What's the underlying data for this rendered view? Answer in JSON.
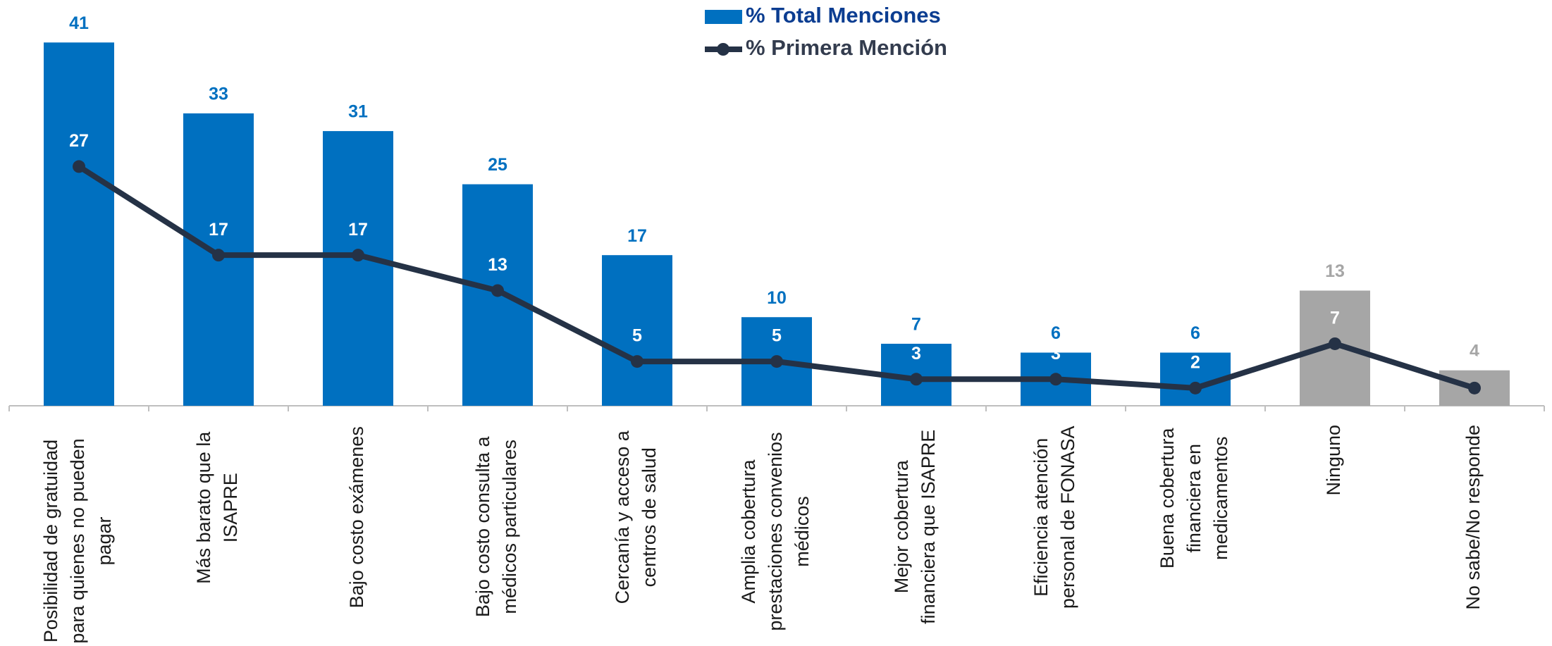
{
  "chart_data": {
    "type": "bar_line",
    "categories": [
      [
        "Posibilidad de gratuidad",
        "para quienes no pueden",
        "pagar"
      ],
      [
        "Más barato que la",
        "ISAPRE"
      ],
      [
        "Bajo costo exámenes"
      ],
      [
        "Bajo costo consulta a",
        "médicos particulares"
      ],
      [
        "Cercanía y acceso a",
        "centros de salud"
      ],
      [
        "Amplia cobertura",
        "prestaciones convenios",
        "médicos"
      ],
      [
        "Mejor cobertura",
        "financiera que ISAPRE"
      ],
      [
        "Eficiencia atención",
        "personal de FONASA"
      ],
      [
        "Buena cobertura",
        "financiera en",
        "medicamentos"
      ],
      [
        "Ninguno"
      ],
      [
        "No sabe/No responde"
      ]
    ],
    "series": [
      {
        "name": "% Total Menciones",
        "type": "bar",
        "color": "#0070c0",
        "colors": [
          "#0070c0",
          "#0070c0",
          "#0070c0",
          "#0070c0",
          "#0070c0",
          "#0070c0",
          "#0070c0",
          "#0070c0",
          "#0070c0",
          "#a6a6a6",
          "#a6a6a6"
        ],
        "values": [
          41,
          33,
          31,
          25,
          17,
          10,
          7,
          6,
          6,
          13,
          4
        ]
      },
      {
        "name": "% Primera Mención",
        "type": "line",
        "color": "#253246",
        "values": [
          27,
          17,
          17,
          13,
          5,
          5,
          3,
          3,
          2,
          7,
          2
        ]
      }
    ],
    "ylim": [
      0,
      45
    ],
    "legend": "top"
  }
}
